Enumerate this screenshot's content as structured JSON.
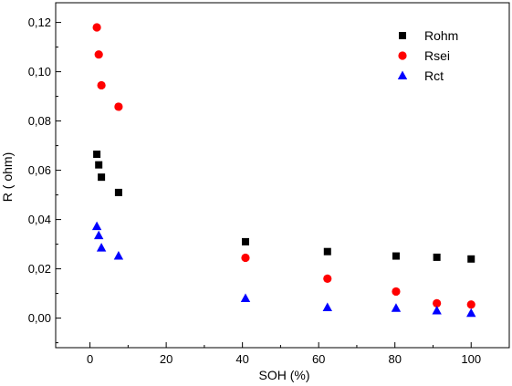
{
  "chart_data": {
    "type": "scatter",
    "xlabel": "SOH (%)",
    "ylabel": "R ( ohm)",
    "xlim": [
      -9,
      110
    ],
    "ylim": [
      -0.012,
      0.128
    ],
    "xticks": [
      0,
      20,
      40,
      60,
      80,
      100
    ],
    "yticks": [
      0.0,
      0.02,
      0.04,
      0.06,
      0.08,
      0.1,
      0.12
    ],
    "xtick_labels": [
      "0",
      "20",
      "40",
      "60",
      "80",
      "100"
    ],
    "ytick_labels": [
      "0,00",
      "0,02",
      "0,04",
      "0,06",
      "0,08",
      "0,10",
      "0,12"
    ],
    "grid": false,
    "legend_position": "top-right",
    "series": [
      {
        "name": "Rohm",
        "marker": "square",
        "color": "#000000",
        "points": [
          {
            "x": 1.8,
            "y": 0.0665
          },
          {
            "x": 2.3,
            "y": 0.0622
          },
          {
            "x": 3.0,
            "y": 0.0572
          },
          {
            "x": 7.5,
            "y": 0.051
          },
          {
            "x": 40.8,
            "y": 0.031
          },
          {
            "x": 62.3,
            "y": 0.027
          },
          {
            "x": 80.3,
            "y": 0.0252
          },
          {
            "x": 91.0,
            "y": 0.0247
          },
          {
            "x": 100.0,
            "y": 0.024
          }
        ]
      },
      {
        "name": "Rsei",
        "marker": "circle",
        "color": "#ff0000",
        "points": [
          {
            "x": 1.8,
            "y": 0.118
          },
          {
            "x": 2.3,
            "y": 0.107
          },
          {
            "x": 3.0,
            "y": 0.0945
          },
          {
            "x": 7.5,
            "y": 0.0858
          },
          {
            "x": 40.8,
            "y": 0.0245
          },
          {
            "x": 62.3,
            "y": 0.016
          },
          {
            "x": 80.3,
            "y": 0.0108
          },
          {
            "x": 91.0,
            "y": 0.006
          },
          {
            "x": 100.0,
            "y": 0.0055
          }
        ]
      },
      {
        "name": "Rct",
        "marker": "triangle",
        "color": "#0000ff",
        "points": [
          {
            "x": 1.8,
            "y": 0.0372
          },
          {
            "x": 2.3,
            "y": 0.0335
          },
          {
            "x": 3.0,
            "y": 0.0285
          },
          {
            "x": 7.5,
            "y": 0.0252
          },
          {
            "x": 40.8,
            "y": 0.008
          },
          {
            "x": 62.3,
            "y": 0.0043
          },
          {
            "x": 80.3,
            "y": 0.004
          },
          {
            "x": 91.0,
            "y": 0.003
          },
          {
            "x": 100.0,
            "y": 0.002
          }
        ]
      }
    ]
  }
}
